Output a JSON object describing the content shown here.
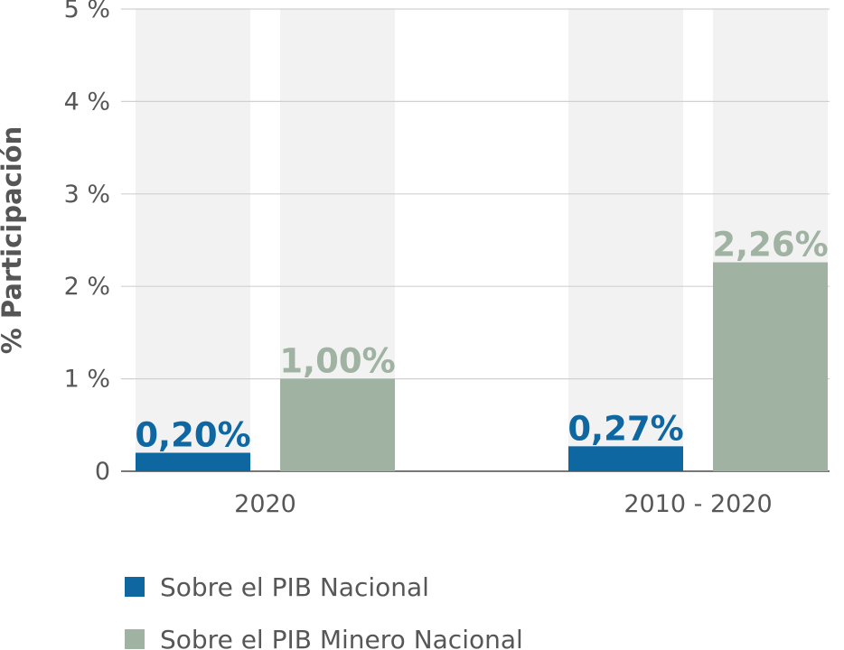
{
  "chart_data": {
    "type": "bar",
    "ylabel": "% Participación",
    "xlabel": "",
    "categories": [
      "2020",
      "2010 - 2020"
    ],
    "series": [
      {
        "name": "Sobre el PIB Nacional",
        "values": [
          0.2,
          0.27
        ],
        "labels": [
          "0,20%",
          "0,27%"
        ],
        "color": "#0f67a2"
      },
      {
        "name": "Sobre el PIB Minero Nacional",
        "values": [
          1.0,
          2.26
        ],
        "labels": [
          "1,00%",
          "2,26%"
        ],
        "color": "#a0b2a2"
      }
    ],
    "ylim": [
      0,
      5
    ],
    "yticks": [
      {
        "value": 0,
        "label": "0"
      },
      {
        "value": 1,
        "label": "1 %"
      },
      {
        "value": 2,
        "label": "2 %"
      },
      {
        "value": 3,
        "label": "3 %"
      },
      {
        "value": 4,
        "label": "4 %"
      },
      {
        "value": 5,
        "label": "5 %"
      }
    ],
    "grid": true,
    "background_columns": true,
    "legend_position": "bottom-left"
  },
  "colors": {
    "column_bg": "#f2f2f2",
    "grid": "#d0d0d0",
    "axis": "#4a4a4a",
    "text": "#575757",
    "ylabel": "#555555"
  }
}
